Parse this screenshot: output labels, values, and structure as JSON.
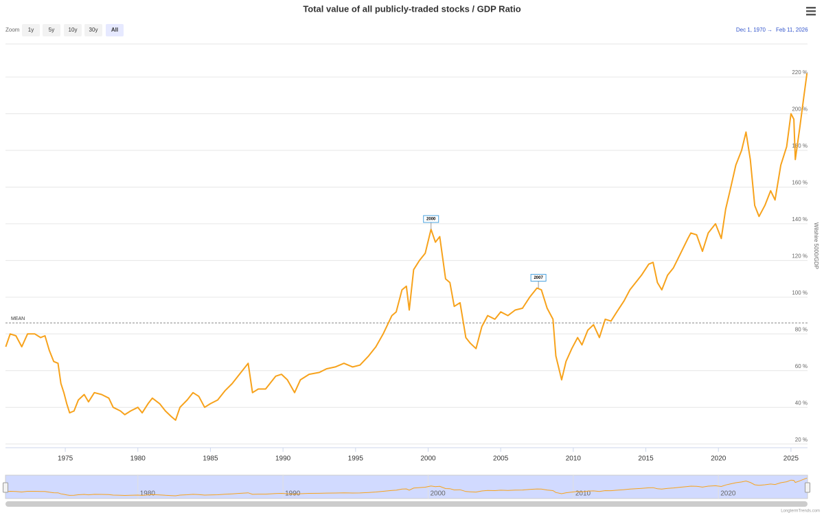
{
  "chart_data": {
    "type": "line",
    "title": "Total value of all publicly-traded stocks / GDP Ratio",
    "y_axis_title": "Wilshire 5000/GDP",
    "color": "#f7a21b",
    "xlim": [
      1970.88,
      2026.14
    ],
    "xticks": [
      1975,
      1980,
      1985,
      1990,
      1995,
      2000,
      2005,
      2010,
      2015,
      2020,
      2025
    ],
    "ylim": [
      18,
      238
    ],
    "yticks": [
      {
        "value": 20,
        "label": "20 %"
      },
      {
        "value": 40,
        "label": "40 %"
      },
      {
        "value": 60,
        "label": "60 %"
      },
      {
        "value": 80,
        "label": "80 %"
      },
      {
        "value": 100,
        "label": "100 %"
      },
      {
        "value": 120,
        "label": "120 %"
      },
      {
        "value": 140,
        "label": "140 %"
      },
      {
        "value": 160,
        "label": "160 %"
      },
      {
        "value": 180,
        "label": "180 %"
      },
      {
        "value": 200,
        "label": "200 %"
      },
      {
        "value": 220,
        "label": "220 %"
      }
    ],
    "grid": true,
    "mean": {
      "label": "MEAN",
      "value": 86
    },
    "annotations": [
      {
        "label": "2000",
        "x": 2000.2,
        "y": 137
      },
      {
        "label": "2007",
        "x": 2007.6,
        "y": 105
      }
    ],
    "navigator_ticks": [
      1980,
      1990,
      2000,
      2010,
      2020
    ],
    "x": [
      1970.9,
      1971.2,
      1971.6,
      1972.0,
      1972.4,
      1972.9,
      1973.3,
      1973.6,
      1973.9,
      1974.2,
      1974.5,
      1974.7,
      1974.9,
      1975.1,
      1975.3,
      1975.6,
      1975.9,
      1976.3,
      1976.6,
      1977.0,
      1977.5,
      1978.0,
      1978.3,
      1978.8,
      1979.1,
      1979.5,
      1980.0,
      1980.3,
      1980.7,
      1981.0,
      1981.5,
      1981.9,
      1982.3,
      1982.6,
      1982.9,
      1983.4,
      1983.8,
      1984.2,
      1984.6,
      1985.0,
      1985.5,
      1986.0,
      1986.5,
      1987.0,
      1987.6,
      1987.9,
      1988.3,
      1988.8,
      1989.5,
      1989.9,
      1990.3,
      1990.8,
      1991.2,
      1991.8,
      1992.5,
      1993.0,
      1993.6,
      1994.2,
      1994.8,
      1995.3,
      1995.9,
      1996.4,
      1996.9,
      1997.5,
      1997.8,
      1998.2,
      1998.5,
      1998.7,
      1999.0,
      1999.4,
      1999.8,
      2000.2,
      2000.5,
      2000.8,
      2001.2,
      2001.5,
      2001.8,
      2002.2,
      2002.6,
      2002.9,
      2003.3,
      2003.7,
      2004.1,
      2004.6,
      2005.0,
      2005.5,
      2006.0,
      2006.5,
      2007.0,
      2007.5,
      2007.8,
      2008.2,
      2008.6,
      2008.8,
      2009.2,
      2009.5,
      2009.9,
      2010.3,
      2010.6,
      2011.0,
      2011.4,
      2011.8,
      2012.2,
      2012.6,
      2013.0,
      2013.5,
      2013.9,
      2014.3,
      2014.7,
      2015.2,
      2015.5,
      2015.8,
      2016.1,
      2016.5,
      2016.9,
      2017.4,
      2017.9,
      2018.1,
      2018.5,
      2018.9,
      2019.3,
      2019.8,
      2020.2,
      2020.5,
      2020.8,
      2021.2,
      2021.6,
      2021.9,
      2022.2,
      2022.5,
      2022.8,
      2023.2,
      2023.6,
      2023.9,
      2024.3,
      2024.7,
      2025.0,
      2025.2,
      2025.3,
      2025.6,
      2025.9,
      2026.1
    ],
    "values": [
      73,
      80,
      79,
      73,
      80,
      80,
      78,
      79,
      71,
      65,
      64,
      53,
      48,
      42,
      37,
      38,
      44,
      47,
      43,
      48,
      47,
      45,
      40,
      38,
      36,
      38,
      40,
      37,
      42,
      45,
      42,
      38,
      35,
      33,
      40,
      44,
      48,
      46,
      40,
      42,
      44,
      49,
      53,
      58,
      64,
      48,
      50,
      50,
      57,
      58,
      55,
      48,
      55,
      58,
      59,
      61,
      62,
      64,
      62,
      63,
      68,
      73,
      80,
      90,
      92,
      104,
      106,
      93,
      115,
      120,
      124,
      137,
      130,
      133,
      110,
      108,
      95,
      97,
      78,
      75,
      72,
      84,
      90,
      88,
      92,
      90,
      93,
      94,
      100,
      105,
      104,
      94,
      88,
      68,
      55,
      65,
      72,
      78,
      74,
      82,
      85,
      78,
      88,
      87,
      92,
      98,
      104,
      108,
      112,
      118,
      119,
      108,
      104,
      112,
      116,
      124,
      132,
      135,
      134,
      125,
      135,
      140,
      132,
      148,
      158,
      172,
      180,
      190,
      175,
      150,
      144,
      150,
      158,
      153,
      172,
      182,
      200,
      197,
      175,
      192,
      210,
      222
    ]
  },
  "ui": {
    "zoom_label": "Zoom",
    "buttons": [
      "1y",
      "5y",
      "10y",
      "30y",
      "All"
    ],
    "range_from": "Dec 1, 1970",
    "range_arrow": "→",
    "range_to": "Feb 11, 2026",
    "credits": "LongtermTrends.com"
  }
}
